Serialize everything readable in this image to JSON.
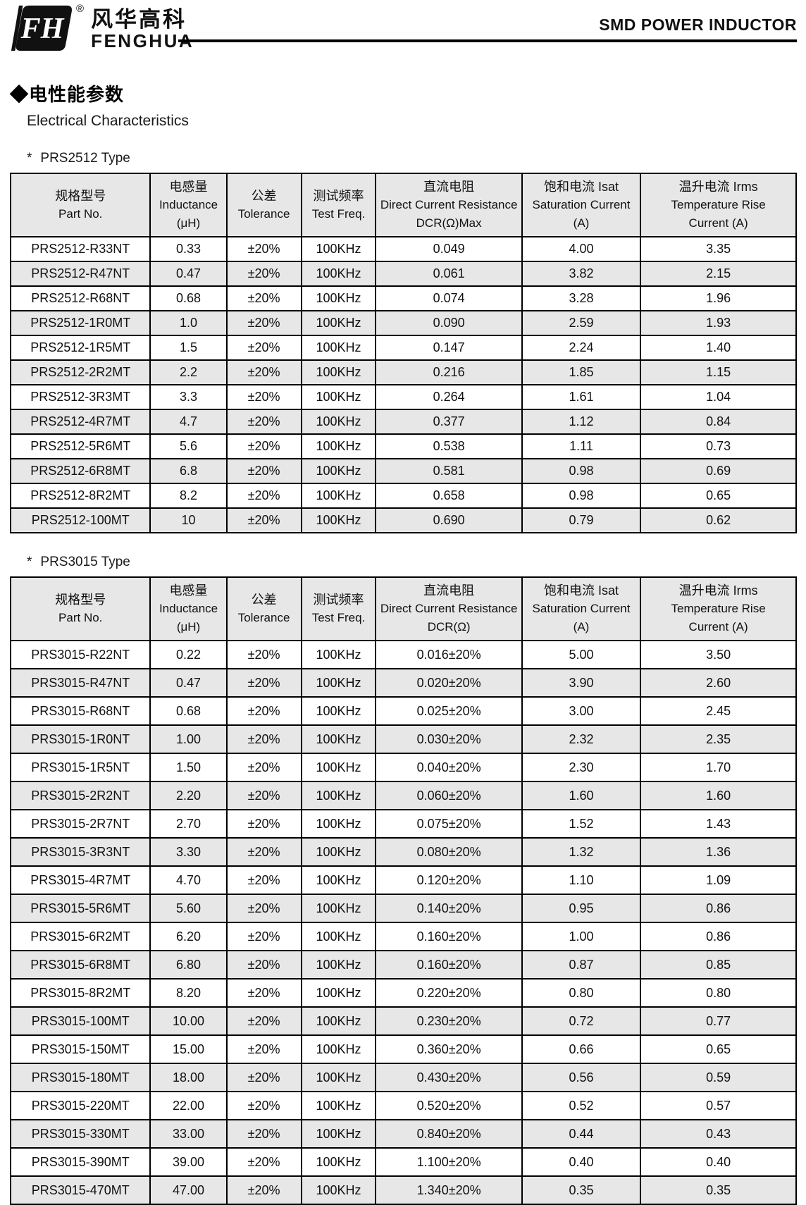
{
  "brand": {
    "logo_monogram": "FH",
    "registered": "®",
    "name_cn": "风华高科",
    "name_en": "FENGHUA"
  },
  "doc": {
    "title": "SMD POWER INDUCTOR",
    "section_marker": "◆",
    "section_title_cn": "电性能参数",
    "section_title_en": "Electrical Characteristics"
  },
  "colors": {
    "header_bg": "#e7e7e7",
    "row_alt_bg": "#e7e7e7",
    "border": "#000000",
    "text": "#111111"
  },
  "tables": [
    {
      "caption_marker": "*",
      "caption": "PRS2512 Type",
      "columns": [
        {
          "lines": [
            "规格型号",
            "Part No."
          ]
        },
        {
          "lines": [
            "电感量",
            "Inductance",
            "(μH)"
          ]
        },
        {
          "lines": [
            "公差",
            "Tolerance"
          ]
        },
        {
          "lines": [
            "测试频率",
            "Test Freq."
          ]
        },
        {
          "lines": [
            "直流电阻",
            "Direct Current Resistance",
            "DCR(Ω)Max"
          ]
        },
        {
          "lines": [
            "饱和电流  Isat",
            "Saturation Current",
            "(A)"
          ]
        },
        {
          "lines": [
            "温升电流  Irms",
            "Temperature Rise",
            "Current (A)"
          ]
        }
      ],
      "rows": [
        [
          "PRS2512-R33NT",
          "0.33",
          "±20%",
          "100KHz",
          "0.049",
          "4.00",
          "3.35"
        ],
        [
          "PRS2512-R47NT",
          "0.47",
          "±20%",
          "100KHz",
          "0.061",
          "3.82",
          "2.15"
        ],
        [
          "PRS2512-R68NT",
          "0.68",
          "±20%",
          "100KHz",
          "0.074",
          "3.28",
          "1.96"
        ],
        [
          "PRS2512-1R0MT",
          "1.0",
          "±20%",
          "100KHz",
          "0.090",
          "2.59",
          "1.93"
        ],
        [
          "PRS2512-1R5MT",
          "1.5",
          "±20%",
          "100KHz",
          "0.147",
          "2.24",
          "1.40"
        ],
        [
          "PRS2512-2R2MT",
          "2.2",
          "±20%",
          "100KHz",
          "0.216",
          "1.85",
          "1.15"
        ],
        [
          "PRS2512-3R3MT",
          "3.3",
          "±20%",
          "100KHz",
          "0.264",
          "1.61",
          "1.04"
        ],
        [
          "PRS2512-4R7MT",
          "4.7",
          "±20%",
          "100KHz",
          "0.377",
          "1.12",
          "0.84"
        ],
        [
          "PRS2512-5R6MT",
          "5.6",
          "±20%",
          "100KHz",
          "0.538",
          "1.11",
          "0.73"
        ],
        [
          "PRS2512-6R8MT",
          "6.8",
          "±20%",
          "100KHz",
          "0.581",
          "0.98",
          "0.69"
        ],
        [
          "PRS2512-8R2MT",
          "8.2",
          "±20%",
          "100KHz",
          "0.658",
          "0.98",
          "0.65"
        ],
        [
          "PRS2512-100MT",
          "10",
          "±20%",
          "100KHz",
          "0.690",
          "0.79",
          "0.62"
        ]
      ]
    },
    {
      "caption_marker": "*",
      "caption": "PRS3015 Type",
      "columns": [
        {
          "lines": [
            "规格型号",
            "Part No."
          ]
        },
        {
          "lines": [
            "电感量",
            "Inductance",
            "(μH)"
          ]
        },
        {
          "lines": [
            "公差",
            "Tolerance"
          ]
        },
        {
          "lines": [
            "测试频率",
            "Test Freq."
          ]
        },
        {
          "lines": [
            "直流电阻",
            "Direct Current Resistance",
            "DCR(Ω)"
          ]
        },
        {
          "lines": [
            "饱和电流  Isat",
            "Saturation Current",
            "(A)"
          ]
        },
        {
          "lines": [
            "温升电流  Irms",
            "Temperature Rise",
            "Current (A)"
          ]
        }
      ],
      "rows": [
        [
          "PRS3015-R22NT",
          "0.22",
          "±20%",
          "100KHz",
          "0.016±20%",
          "5.00",
          "3.50"
        ],
        [
          "PRS3015-R47NT",
          "0.47",
          "±20%",
          "100KHz",
          "0.020±20%",
          "3.90",
          "2.60"
        ],
        [
          "PRS3015-R68NT",
          "0.68",
          "±20%",
          "100KHz",
          "0.025±20%",
          "3.00",
          "2.45"
        ],
        [
          "PRS3015-1R0NT",
          "1.00",
          "±20%",
          "100KHz",
          "0.030±20%",
          "2.32",
          "2.35"
        ],
        [
          "PRS3015-1R5NT",
          "1.50",
          "±20%",
          "100KHz",
          "0.040±20%",
          "2.30",
          "1.70"
        ],
        [
          "PRS3015-2R2NT",
          "2.20",
          "±20%",
          "100KHz",
          "0.060±20%",
          "1.60",
          "1.60"
        ],
        [
          "PRS3015-2R7NT",
          "2.70",
          "±20%",
          "100KHz",
          "0.075±20%",
          "1.52",
          "1.43"
        ],
        [
          "PRS3015-3R3NT",
          "3.30",
          "±20%",
          "100KHz",
          "0.080±20%",
          "1.32",
          "1.36"
        ],
        [
          "PRS3015-4R7MT",
          "4.70",
          "±20%",
          "100KHz",
          "0.120±20%",
          "1.10",
          "1.09"
        ],
        [
          "PRS3015-5R6MT",
          "5.60",
          "±20%",
          "100KHz",
          "0.140±20%",
          "0.95",
          "0.86"
        ],
        [
          "PRS3015-6R2MT",
          "6.20",
          "±20%",
          "100KHz",
          "0.160±20%",
          "1.00",
          "0.86"
        ],
        [
          "PRS3015-6R8MT",
          "6.80",
          "±20%",
          "100KHz",
          "0.160±20%",
          "0.87",
          "0.85"
        ],
        [
          "PRS3015-8R2MT",
          "8.20",
          "±20%",
          "100KHz",
          "0.220±20%",
          "0.80",
          "0.80"
        ],
        [
          "PRS3015-100MT",
          "10.00",
          "±20%",
          "100KHz",
          "0.230±20%",
          "0.72",
          "0.77"
        ],
        [
          "PRS3015-150MT",
          "15.00",
          "±20%",
          "100KHz",
          "0.360±20%",
          "0.66",
          "0.65"
        ],
        [
          "PRS3015-180MT",
          "18.00",
          "±20%",
          "100KHz",
          "0.430±20%",
          "0.56",
          "0.59"
        ],
        [
          "PRS3015-220MT",
          "22.00",
          "±20%",
          "100KHz",
          "0.520±20%",
          "0.52",
          "0.57"
        ],
        [
          "PRS3015-330MT",
          "33.00",
          "±20%",
          "100KHz",
          "0.840±20%",
          "0.44",
          "0.43"
        ],
        [
          "PRS3015-390MT",
          "39.00",
          "±20%",
          "100KHz",
          "1.100±20%",
          "0.40",
          "0.40"
        ],
        [
          "PRS3015-470MT",
          "47.00",
          "±20%",
          "100KHz",
          "1.340±20%",
          "0.35",
          "0.35"
        ]
      ]
    }
  ]
}
